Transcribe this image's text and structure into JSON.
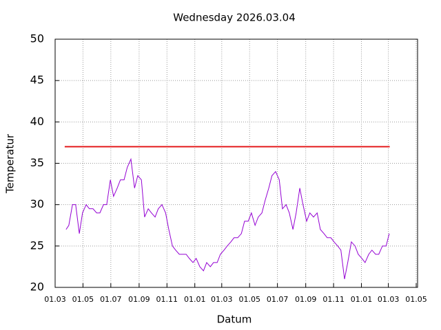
{
  "chart_data": {
    "type": "line",
    "title": "Wednesday 2026.03.04",
    "xlabel": "Datum",
    "ylabel": "Temperatur",
    "xlim": [
      0,
      794
    ],
    "ylim": [
      20,
      50
    ],
    "xticks": [
      {
        "value": 0,
        "label": "01.03"
      },
      {
        "value": 61,
        "label": "01.05"
      },
      {
        "value": 122,
        "label": "01.07"
      },
      {
        "value": 184,
        "label": "01.09"
      },
      {
        "value": 245,
        "label": "01.11"
      },
      {
        "value": 306,
        "label": "01.01"
      },
      {
        "value": 365,
        "label": "01.03"
      },
      {
        "value": 426,
        "label": "01.05"
      },
      {
        "value": 487,
        "label": "01.07"
      },
      {
        "value": 549,
        "label": "01.09"
      },
      {
        "value": 610,
        "label": "01.11"
      },
      {
        "value": 671,
        "label": "01.01"
      },
      {
        "value": 730,
        "label": "01.03"
      },
      {
        "value": 791,
        "label": "01.05"
      }
    ],
    "yticks": [
      20,
      25,
      30,
      35,
      40,
      45,
      50
    ],
    "grid": true,
    "series": [
      {
        "color": "#9400d3",
        "x": [
          24,
          30,
          38,
          45,
          53,
          60,
          68,
          75,
          83,
          91,
          98,
          106,
          113,
          121,
          128,
          136,
          143,
          151,
          158,
          166,
          174,
          181,
          189,
          196,
          204,
          211,
          219,
          226,
          234,
          242,
          249,
          257,
          264,
          272,
          279,
          287,
          294,
          302,
          309,
          317,
          325,
          332,
          340,
          347,
          355,
          362,
          370,
          377,
          385,
          392,
          400,
          408,
          415,
          423,
          430,
          438,
          445,
          453,
          460,
          468,
          475,
          483,
          491,
          498,
          506,
          513,
          521,
          528,
          536,
          543,
          551,
          558,
          566,
          574,
          581,
          589,
          596,
          604,
          611,
          619,
          626,
          634,
          641,
          649,
          657,
          664,
          672,
          679,
          687,
          694,
          702,
          709,
          717,
          725,
          732
        ],
        "values": [
          27,
          27.5,
          30,
          30,
          26.5,
          29,
          30,
          29.5,
          29.5,
          29,
          29,
          30,
          30,
          33,
          31,
          32,
          33,
          33,
          34.5,
          35.5,
          32,
          33.5,
          33,
          28.5,
          29.5,
          29,
          28.5,
          29.5,
          30,
          29,
          27,
          25,
          24.5,
          24,
          24,
          24,
          23.5,
          23,
          23.5,
          22.5,
          22,
          23,
          22.5,
          23,
          23,
          24,
          24.5,
          25,
          25.5,
          26,
          26,
          26.5,
          28,
          28,
          29,
          27.5,
          28.5,
          29,
          30.5,
          32,
          33.5,
          34,
          33,
          29.5,
          30,
          29,
          27,
          29,
          32,
          30,
          28,
          29,
          28.5,
          29,
          27,
          26.5,
          26,
          26,
          25.5,
          25,
          24.5,
          21,
          23,
          25.5,
          25,
          24,
          23.5,
          23,
          24,
          24.5,
          24,
          24,
          25,
          25,
          26.5
        ]
      },
      {
        "color": "#e41a1c",
        "x": [
          21,
          733
        ],
        "values": [
          37,
          37
        ]
      }
    ]
  }
}
